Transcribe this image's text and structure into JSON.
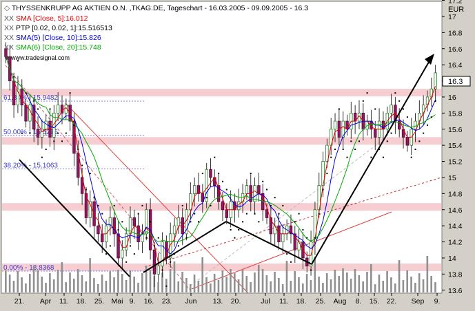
{
  "header": {
    "title": "THYSSENKRUPP AG AKTIEN O.N. ,TKAG.DE, Tageschart - 16.03.2005 - 09.09.2005 - 16.3",
    "indicators": [
      {
        "prefix": "XX",
        "text": "SMA [Close, 5]:16.012",
        "color": "#e00000"
      },
      {
        "prefix": "XX",
        "text": "PTP [0.02, 0.02, 1]:15.516513",
        "color": "#000000"
      },
      {
        "prefix": "XX",
        "text": "SMA(5) [Close, 10]:15.826",
        "color": "#0000e0"
      },
      {
        "prefix": "XX",
        "text": "SMA(6) [Close, 20]:15.748",
        "color": "#00aa00"
      }
    ],
    "watermark": "www.tradesignal.com"
  },
  "chart_data": {
    "type": "candlestick",
    "currency_label": "EUR",
    "last_price_label": "16.3",
    "y_ticks": [
      "13.6",
      "13.8",
      "14",
      "14.2",
      "14.4",
      "14.6",
      "14.8",
      "15",
      "15.2",
      "15.4",
      "15.6",
      "15.8",
      "16",
      "16.2",
      "16.4",
      "16.6",
      "16.8",
      "17",
      "17.2"
    ],
    "ylim": [
      13.55,
      17.35
    ],
    "x_ticks": [
      "21.",
      "Apr",
      "11.",
      "18.",
      "25.",
      "Mai",
      "9.",
      "16.",
      "23.",
      "Jun",
      "13.",
      "20.",
      "Jul",
      "11.",
      "18.",
      "25.",
      "Aug",
      "8.",
      "15.",
      "22.",
      "Sep",
      "9."
    ],
    "fib_levels": [
      {
        "label": "61.80% - 15.9482",
        "value": 15.9482
      },
      {
        "label": "50.00% - 15.5216",
        "value": 15.5216
      },
      {
        "label": "38.20% - 15.1063",
        "value": 15.1063
      },
      {
        "label": "0.00% - 13.8368",
        "value": 13.8368
      }
    ],
    "resistance_zones": [
      16.05,
      15.45,
      14.63,
      13.88
    ],
    "close_series": [
      16.5,
      16.2,
      15.9,
      16.1,
      15.9,
      15.7,
      15.9,
      15.6,
      15.5,
      15.6,
      15.7,
      15.5,
      15.8,
      15.9,
      15.8,
      15.9,
      15.7,
      15.3,
      15.0,
      14.8,
      14.5,
      14.7,
      14.4,
      14.3,
      14.2,
      14.4,
      14.5,
      14.3,
      14.0,
      14.1,
      14.3,
      14.5,
      14.4,
      14.2,
      14.3,
      14.6,
      14.1,
      13.8,
      13.9,
      14.2,
      14.0,
      14.3,
      14.4,
      14.5,
      14.3,
      14.6,
      14.8,
      14.9,
      14.8,
      14.7,
      15.1,
      15.0,
      14.9,
      14.7,
      14.6,
      14.5,
      14.7,
      14.6,
      14.7,
      14.8,
      14.9,
      14.7,
      14.9,
      14.8,
      14.6,
      14.5,
      14.3,
      14.4,
      14.2,
      14.3,
      14.4,
      14.3,
      14.1,
      14.2,
      14.0,
      13.9,
      14.2,
      14.6,
      14.9,
      15.2,
      15.4,
      15.6,
      15.7,
      15.5,
      15.7,
      15.6,
      15.8,
      15.7,
      15.8,
      15.6,
      15.7,
      15.6,
      15.5,
      15.7,
      15.6,
      15.8,
      15.9,
      15.7,
      15.6,
      15.5,
      15.4,
      15.6,
      15.7,
      15.8,
      15.9,
      16.0,
      16.1,
      16.3
    ]
  }
}
